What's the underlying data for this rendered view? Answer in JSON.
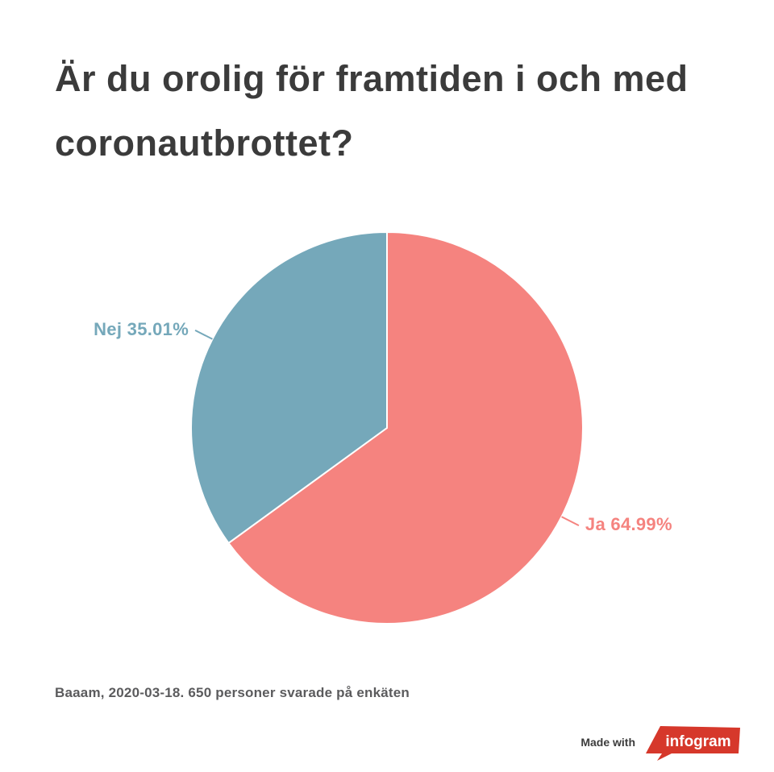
{
  "page": {
    "title": "Är du orolig för framtiden i och med coronautbrottet?",
    "source_note": "Baaam, 2020-03-18. 650 personer svarade på enkäten",
    "attribution": {
      "made_with_label": "Made with",
      "brand_name": "infogram",
      "brand_color": "#d6382b"
    },
    "background_color": "#ffffff",
    "title_color": "#3b3b3b",
    "source_note_color": "#5b5b5d"
  },
  "chart_data": {
    "type": "pie",
    "title": "Är du orolig för framtiden i och med coronautbrottet?",
    "categories": [
      "Ja",
      "Nej"
    ],
    "values": [
      64.99,
      35.01
    ],
    "unit": "%",
    "colors": [
      "#f5837f",
      "#75a8ba"
    ],
    "slice_labels": [
      "Ja 64.99%",
      "Nej 35.01%"
    ],
    "start_angle_deg": 0,
    "direction": "clockwise",
    "legend": "none",
    "grid": false,
    "source_note": "Baaam, 2020-03-18. 650 personer svarade på enkäten"
  }
}
